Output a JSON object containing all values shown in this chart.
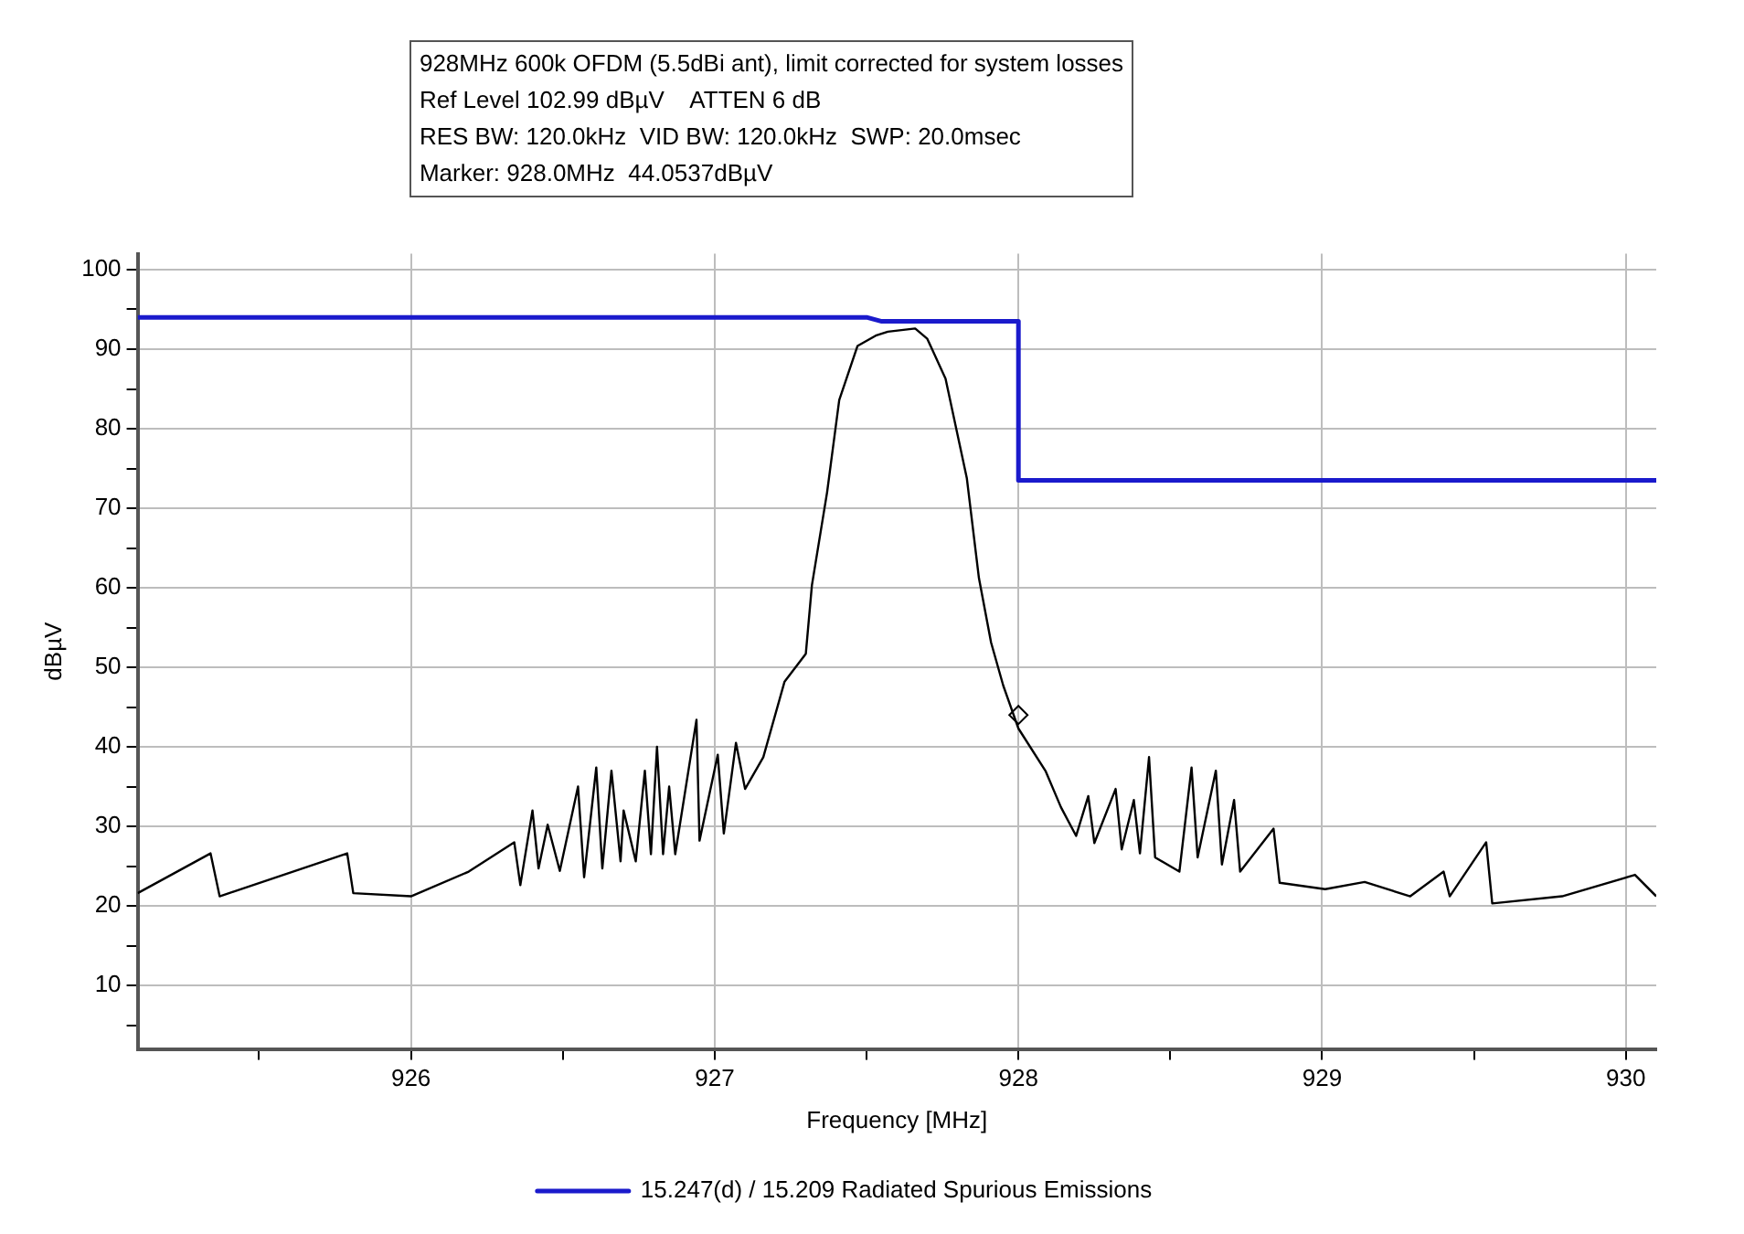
{
  "chart_data": {
    "type": "line",
    "title": "928MHz 600k OFDM (5.5dBi ant), limit corrected for system losses",
    "annotations": [
      "Ref Level 102.99 dBµV    ATTEN 6 dB",
      "RES BW: 120.0kHz  VID BW: 120.0kHz  SWP: 20.0msec",
      "Marker: 928.0MHz  44.0537dBµV"
    ],
    "xlabel": "Frequency [MHz]",
    "ylabel": "dBµV",
    "xlim": [
      925.1,
      930.1
    ],
    "ylim": [
      2,
      102
    ],
    "xticks": [
      {
        "value": 925.5,
        "label": null
      },
      926,
      {
        "value": 926.5,
        "label": null
      },
      927,
      {
        "value": 927.5,
        "label": null
      },
      928,
      {
        "value": 928.5,
        "label": null
      },
      929,
      {
        "value": 929.5,
        "label": null
      },
      930
    ],
    "yticks": [
      {
        "value": 5,
        "label": null
      },
      10,
      {
        "value": 15,
        "label": null
      },
      20,
      {
        "value": 25,
        "label": null
      },
      30,
      {
        "value": 35,
        "label": null
      },
      40,
      {
        "value": 45,
        "label": null
      },
      50,
      {
        "value": 55,
        "label": null
      },
      60,
      {
        "value": 65,
        "label": null
      },
      70,
      {
        "value": 75,
        "label": null
      },
      80,
      {
        "value": 85,
        "label": null
      },
      90,
      {
        "value": 95,
        "label": null
      },
      100
    ],
    "grid": true,
    "legend": "bottom",
    "marker": "none",
    "line_style": "solid",
    "series": [
      {
        "color": "#000000",
        "x": [
          925.1,
          925.34,
          925.37,
          925.79,
          925.81,
          926.0,
          926.19,
          926.34,
          926.36,
          926.4,
          926.42,
          926.45,
          926.49,
          926.55,
          926.57,
          926.61,
          926.63,
          926.66,
          926.69,
          926.7,
          926.74,
          926.77,
          926.79,
          926.81,
          926.83,
          926.85,
          926.87,
          926.94,
          926.95,
          927.01,
          927.03,
          927.07,
          927.1,
          927.16,
          927.23,
          927.3,
          927.32,
          927.37,
          927.41,
          927.47,
          927.53,
          927.57,
          927.66,
          927.7,
          927.76,
          927.83,
          927.87,
          927.91,
          927.95,
          928.0,
          928.09,
          928.14,
          928.19,
          928.23,
          928.25,
          928.32,
          928.34,
          928.38,
          928.4,
          928.43,
          928.45,
          928.53,
          928.57,
          928.59,
          928.65,
          928.67,
          928.71,
          928.73,
          928.84,
          928.86,
          929.01,
          929.14,
          929.29,
          929.4,
          929.42,
          929.54,
          929.56,
          929.79,
          930.03,
          930.1
        ],
        "values": [
          21.6,
          26.6,
          21.2,
          26.6,
          21.6,
          21.2,
          24.3,
          28,
          22.6,
          32,
          24.7,
          30.2,
          24.4,
          35,
          23.6,
          37.4,
          24.7,
          37,
          25.6,
          32,
          25.6,
          37,
          26.5,
          40,
          26.5,
          35,
          26.5,
          43.4,
          28.2,
          39,
          29.1,
          40.5,
          34.7,
          38.7,
          48.2,
          51.7,
          60.3,
          72,
          83.6,
          90.4,
          91.7,
          92.2,
          92.6,
          91.3,
          86.3,
          73.8,
          61.2,
          53.1,
          47.7,
          42.3,
          36.9,
          32.4,
          28.8,
          33.8,
          27.9,
          34.7,
          27.1,
          33.3,
          26.6,
          38.7,
          26.1,
          24.3,
          37.4,
          26.1,
          37,
          25.2,
          33.3,
          24.3,
          29.7,
          22.9,
          22.1,
          23,
          21.2,
          24.3,
          21.2,
          28,
          20.3,
          21.2,
          23.9,
          21.2
        ]
      },
      {
        "name": "15.247(d) / 15.209 Radiated Spurious Emissions",
        "color": "#1a1acc",
        "x": [
          925.1,
          927.5,
          927.55,
          928.0,
          928.0,
          930.1
        ],
        "values": [
          94,
          94,
          93.5,
          93.5,
          73.5,
          73.5
        ]
      },
      {
        "type": "scatter",
        "marker": "diamond",
        "color": "#000000",
        "x": [
          928.0
        ],
        "values": [
          44
        ]
      }
    ]
  }
}
